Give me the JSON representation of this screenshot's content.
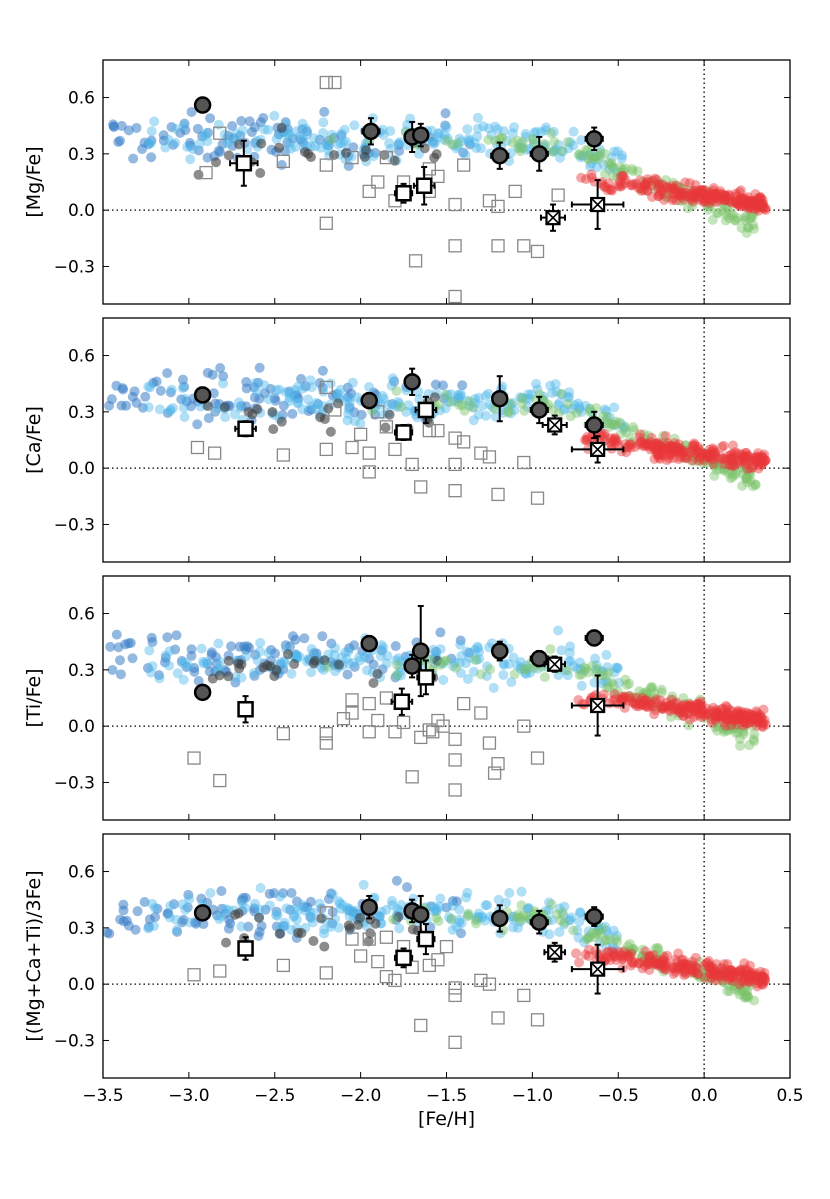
{
  "chart_data": {
    "type": "scatter",
    "xlabel": "[Fe/H]",
    "xlim": [
      -3.5,
      0.5
    ],
    "xticks": [
      -3.5,
      -3.0,
      -2.5,
      -2.0,
      -1.5,
      -1.0,
      -0.5,
      0.0,
      0.5
    ],
    "xtick_labels": [
      "−3.5",
      "−3.0",
      "−2.5",
      "−2.0",
      "−1.5",
      "−1.0",
      "−0.5",
      "0.0",
      "0.5"
    ],
    "ylim": [
      -0.5,
      0.8
    ],
    "yticks": [
      -0.3,
      0.0,
      0.3,
      0.6
    ],
    "ytick_labels": [
      "−0.3",
      "0.0",
      "0.3",
      "0.6"
    ],
    "reference_lines": {
      "solar_feh": 0.0,
      "solar_ratio": 0.0
    },
    "colors": {
      "halo_dark": "#3a7fc8",
      "halo_light": "#4fb8ea",
      "thick_disk": "#7cc46a",
      "thin_disk": "#e8373a",
      "dwarf": "#404040",
      "open_square": "#888888"
    },
    "panels": [
      {
        "ylabel": "[Mg/Fe]",
        "big_filled": [
          [
            -2.92,
            0.56,
            0.03,
            0.03
          ],
          [
            -1.94,
            0.42,
            0.05,
            0.07
          ],
          [
            -1.7,
            0.39,
            0.04,
            0.08
          ],
          [
            -1.65,
            0.4,
            0.04,
            0.06
          ],
          [
            -1.19,
            0.29,
            0.05,
            0.07
          ],
          [
            -0.96,
            0.3,
            0.05,
            0.09
          ],
          [
            -0.64,
            0.38,
            0.05,
            0.06
          ]
        ],
        "big_open": [
          [
            -2.68,
            0.25,
            0.08,
            0.12
          ],
          [
            -1.75,
            0.09,
            0.05,
            0.05
          ],
          [
            -1.63,
            0.13,
            0.06,
            0.1
          ]
        ],
        "big_cross": [
          [
            -0.88,
            -0.04,
            0.07,
            0.07
          ],
          [
            -0.62,
            0.03,
            0.15,
            0.13
          ]
        ],
        "small_squares": [
          [
            -2.9,
            0.2
          ],
          [
            -2.82,
            0.41
          ],
          [
            -2.2,
            0.68
          ],
          [
            -2.15,
            0.68
          ],
          [
            -2.2,
            -0.07
          ],
          [
            -1.68,
            -0.27
          ],
          [
            -1.45,
            -0.46
          ],
          [
            -1.45,
            -0.19
          ],
          [
            -1.2,
            -0.19
          ],
          [
            -1.05,
            -0.19
          ],
          [
            -1.45,
            0.03
          ],
          [
            -1.2,
            0.02
          ],
          [
            -0.97,
            -0.22
          ],
          [
            -1.9,
            0.15
          ],
          [
            -1.8,
            0.05
          ],
          [
            -1.6,
            0.1
          ],
          [
            -2.45,
            0.26
          ],
          [
            -2.2,
            0.24
          ],
          [
            -1.95,
            0.1
          ],
          [
            -1.75,
            0.15
          ],
          [
            -1.55,
            0.18
          ],
          [
            -1.25,
            0.05
          ],
          [
            -1.1,
            0.1
          ],
          [
            -2.05,
            0.28
          ],
          [
            -1.85,
            0.28
          ],
          [
            -1.6,
            0.22
          ],
          [
            -1.4,
            0.24
          ],
          [
            -0.85,
            0.08
          ]
        ]
      },
      {
        "ylabel": "[Ca/Fe]",
        "big_filled": [
          [
            -2.92,
            0.39,
            0.03,
            0.04
          ],
          [
            -1.95,
            0.36,
            0.04,
            0.04
          ],
          [
            -1.7,
            0.46,
            0.04,
            0.07
          ],
          [
            -1.19,
            0.37,
            0.04,
            0.12
          ],
          [
            -0.96,
            0.31,
            0.05,
            0.07
          ],
          [
            -0.64,
            0.23,
            0.05,
            0.07
          ]
        ],
        "big_open": [
          [
            -2.67,
            0.21,
            0.06,
            0.04
          ],
          [
            -1.75,
            0.19,
            0.05,
            0.04
          ],
          [
            -1.62,
            0.31,
            0.06,
            0.07
          ]
        ],
        "big_cross": [
          [
            -0.87,
            0.23,
            0.07,
            0.05
          ],
          [
            -0.62,
            0.1,
            0.15,
            0.07
          ]
        ],
        "small_squares": [
          [
            -2.95,
            0.11
          ],
          [
            -2.85,
            0.08
          ],
          [
            -2.45,
            0.07
          ],
          [
            -2.2,
            0.1
          ],
          [
            -2.05,
            0.11
          ],
          [
            -1.95,
            0.08
          ],
          [
            -1.95,
            -0.02
          ],
          [
            -1.7,
            0.02
          ],
          [
            -1.65,
            -0.1
          ],
          [
            -1.45,
            0.02
          ],
          [
            -1.45,
            -0.12
          ],
          [
            -1.45,
            0.16
          ],
          [
            -1.25,
            0.06
          ],
          [
            -1.2,
            -0.14
          ],
          [
            -1.05,
            0.03
          ],
          [
            -0.97,
            -0.16
          ],
          [
            -2.2,
            0.43
          ],
          [
            -1.85,
            0.22
          ],
          [
            -1.6,
            0.2
          ],
          [
            -1.4,
            0.14
          ],
          [
            -1.9,
            0.3
          ],
          [
            -2.15,
            0.31
          ],
          [
            -2.0,
            0.18
          ],
          [
            -1.55,
            0.2
          ],
          [
            -1.8,
            0.1
          ],
          [
            -1.3,
            0.08
          ]
        ]
      },
      {
        "ylabel": "[Ti/Fe]",
        "big_filled": [
          [
            -1.95,
            0.44,
            0.04,
            0.04
          ],
          [
            -1.7,
            0.32,
            0.04,
            0.06
          ],
          [
            -1.65,
            0.4,
            0.04,
            0.24
          ],
          [
            -1.19,
            0.4,
            0.04,
            0.05
          ],
          [
            -0.96,
            0.36,
            0.05,
            0.04
          ],
          [
            -0.64,
            0.47,
            0.05,
            0.04
          ],
          [
            -2.92,
            0.18,
            0.03,
            0.03
          ]
        ],
        "big_open": [
          [
            -2.67,
            0.09,
            0.04,
            0.07
          ],
          [
            -1.76,
            0.13,
            0.06,
            0.07
          ],
          [
            -1.62,
            0.26,
            0.05,
            0.09
          ]
        ],
        "big_cross": [
          [
            -0.87,
            0.33,
            0.06,
            0.04
          ],
          [
            -0.62,
            0.11,
            0.15,
            0.16
          ]
        ],
        "small_squares": [
          [
            -2.97,
            -0.17
          ],
          [
            -2.82,
            -0.29
          ],
          [
            -2.45,
            -0.04
          ],
          [
            -2.2,
            -0.09
          ],
          [
            -2.2,
            -0.04
          ],
          [
            -2.05,
            0.07
          ],
          [
            -1.95,
            -0.03
          ],
          [
            -1.85,
            0.15
          ],
          [
            -1.8,
            -0.03
          ],
          [
            -1.7,
            -0.27
          ],
          [
            -1.6,
            -0.02
          ],
          [
            -1.55,
            0.03
          ],
          [
            -1.45,
            -0.18
          ],
          [
            -1.45,
            -0.34
          ],
          [
            -1.45,
            -0.07
          ],
          [
            -1.25,
            -0.09
          ],
          [
            -1.22,
            -0.25
          ],
          [
            -1.2,
            -0.2
          ],
          [
            -1.05,
            0.0
          ],
          [
            -0.97,
            -0.17
          ],
          [
            -2.05,
            0.14
          ],
          [
            -1.95,
            0.12
          ],
          [
            -1.75,
            0.02
          ],
          [
            -1.65,
            -0.06
          ],
          [
            -1.58,
            -0.03
          ],
          [
            -1.52,
            0.0
          ],
          [
            -1.4,
            0.12
          ],
          [
            -1.3,
            0.07
          ],
          [
            -2.1,
            0.04
          ],
          [
            -1.9,
            0.03
          ]
        ]
      },
      {
        "ylabel": "[(Mg+Ca+Ti)/3Fe]",
        "big_filled": [
          [
            -2.92,
            0.38,
            0.03,
            0.03
          ],
          [
            -1.95,
            0.41,
            0.04,
            0.06
          ],
          [
            -1.7,
            0.39,
            0.04,
            0.06
          ],
          [
            -1.65,
            0.37,
            0.04,
            0.1
          ],
          [
            -1.19,
            0.35,
            0.04,
            0.07
          ],
          [
            -0.96,
            0.33,
            0.05,
            0.06
          ],
          [
            -0.64,
            0.36,
            0.05,
            0.05
          ]
        ],
        "big_open": [
          [
            -2.67,
            0.19,
            0.04,
            0.06
          ],
          [
            -1.75,
            0.14,
            0.05,
            0.05
          ],
          [
            -1.62,
            0.24,
            0.05,
            0.08
          ]
        ],
        "big_cross": [
          [
            -0.87,
            0.17,
            0.06,
            0.05
          ],
          [
            -0.62,
            0.08,
            0.15,
            0.13
          ]
        ],
        "small_squares": [
          [
            -2.97,
            0.05
          ],
          [
            -2.82,
            0.07
          ],
          [
            -2.45,
            0.1
          ],
          [
            -2.2,
            0.06
          ],
          [
            -2.2,
            0.38
          ],
          [
            -2.05,
            0.24
          ],
          [
            -1.95,
            0.24
          ],
          [
            -1.85,
            0.04
          ],
          [
            -1.8,
            0.02
          ],
          [
            -1.7,
            0.09
          ],
          [
            -1.65,
            -0.22
          ],
          [
            -1.45,
            -0.31
          ],
          [
            -1.45,
            -0.06
          ],
          [
            -1.45,
            -0.02
          ],
          [
            -1.25,
            0.0
          ],
          [
            -1.2,
            -0.18
          ],
          [
            -1.05,
            -0.06
          ],
          [
            -0.97,
            -0.19
          ],
          [
            -1.55,
            0.13
          ],
          [
            -2.0,
            0.15
          ],
          [
            -1.9,
            0.12
          ],
          [
            -1.75,
            0.2
          ],
          [
            -1.6,
            0.1
          ],
          [
            -1.3,
            0.02
          ],
          [
            -1.85,
            0.25
          ],
          [
            -1.5,
            0.2
          ]
        ]
      }
    ],
    "background_stars": {
      "halo_dark_x": [
        -3.45,
        -3.42,
        -3.38,
        -3.35,
        -3.3,
        -3.25,
        -3.2,
        -3.15,
        -3.1,
        -3.05,
        -3.0,
        -2.97,
        -2.95,
        -2.9,
        -2.88,
        -2.85,
        -2.82,
        -2.78,
        -2.75,
        -2.7,
        -2.68,
        -2.65,
        -2.62,
        -2.6,
        -2.55,
        -2.5,
        -2.48,
        -2.45,
        -2.42,
        -2.4,
        -2.35,
        -2.3,
        -2.25,
        -2.2,
        -2.15,
        -2.1,
        -2.05,
        -2.0,
        -1.95,
        -1.9,
        -1.8,
        -1.7,
        -1.6,
        -1.5,
        -1.4
      ],
      "halo_light_x": [
        -3.2,
        -3.1,
        -3.0,
        -2.9,
        -2.8,
        -2.7,
        -2.6,
        -2.5,
        -2.45,
        -2.4,
        -2.35,
        -2.3,
        -2.25,
        -2.2,
        -2.15,
        -2.1,
        -2.05,
        -2.0,
        -1.95,
        -1.9,
        -1.85,
        -1.8,
        -1.75,
        -1.7,
        -1.65,
        -1.6,
        -1.55,
        -1.5,
        -1.45,
        -1.4,
        -1.35,
        -1.3,
        -1.25,
        -1.2,
        -1.15,
        -1.1,
        -1.05,
        -1.0,
        -0.95,
        -0.9,
        -0.85,
        -0.8,
        -0.75,
        -0.7,
        -0.65,
        -0.6,
        -0.55,
        -0.5
      ],
      "thick_x_range": [
        -2.3,
        0.3
      ],
      "thin_x_range": [
        -0.75,
        0.36
      ]
    }
  }
}
